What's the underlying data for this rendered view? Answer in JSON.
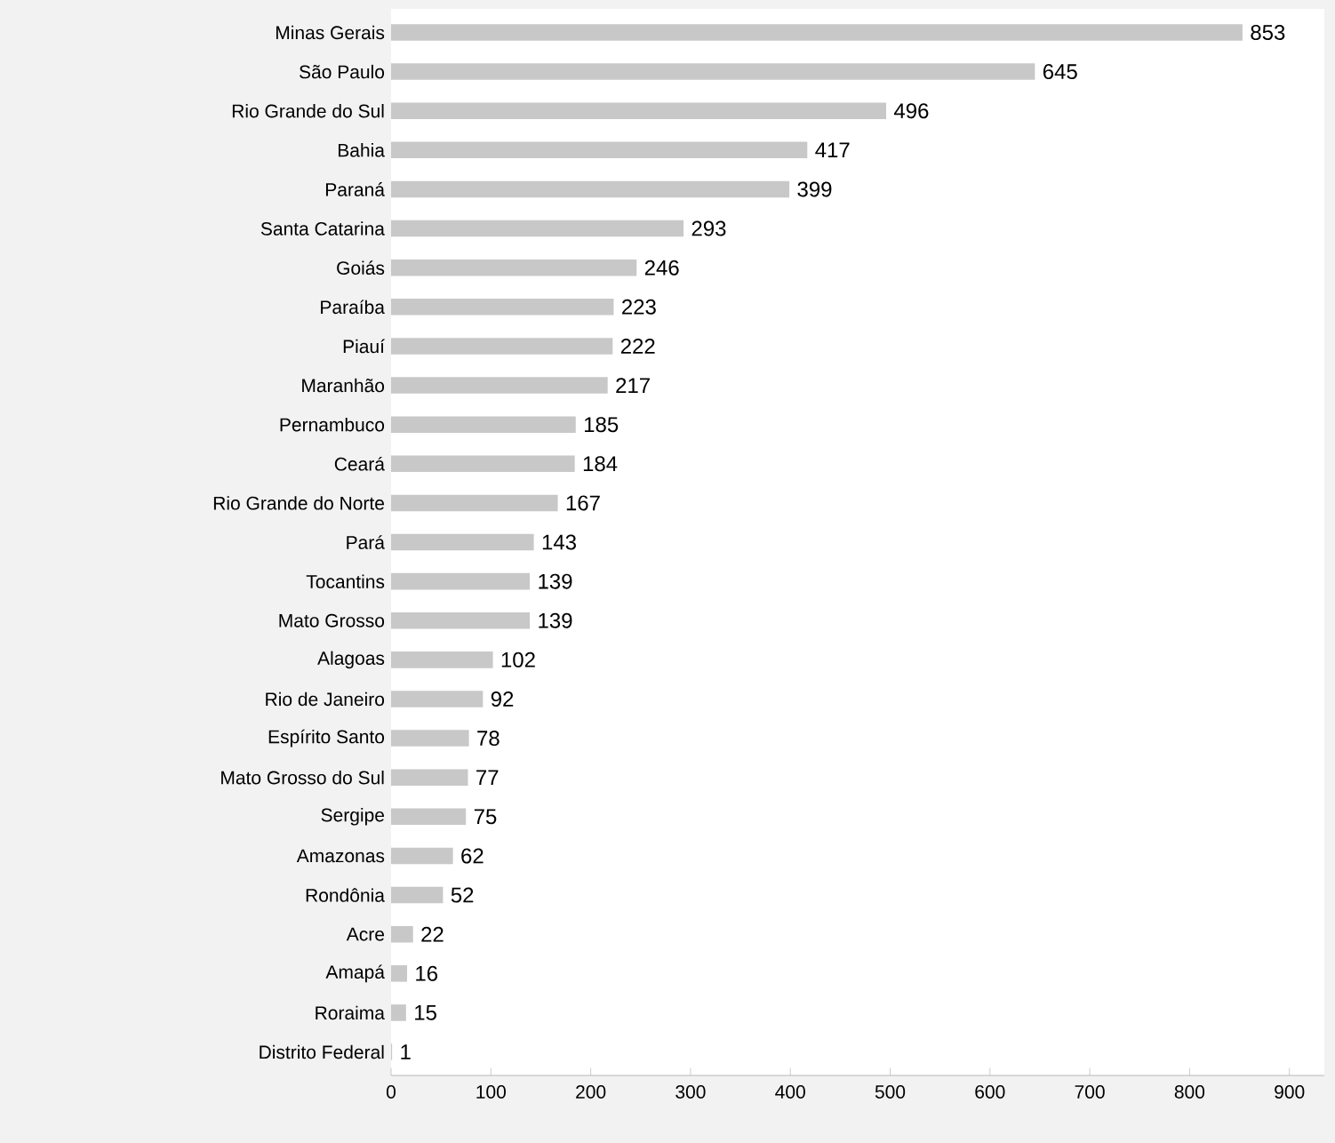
{
  "chart_data": {
    "type": "bar",
    "orientation": "horizontal",
    "categories": [
      "Minas Gerais",
      "São Paulo",
      "Rio Grande do Sul",
      "Bahia",
      "Paraná",
      "Santa Catarina",
      "Goiás",
      "Paraíba",
      "Piauí",
      "Maranhão",
      "Pernambuco",
      "Ceará",
      "Rio Grande do Norte",
      "Pará",
      "Tocantins",
      "Mato Grosso",
      "Alagoas",
      "Rio de Janeiro",
      "Espírito Santo",
      "Mato Grosso do Sul",
      "Sergipe",
      "Amazonas",
      "Rondônia",
      "Acre",
      "Amapá",
      "Roraima",
      "Distrito Federal"
    ],
    "values": [
      853,
      645,
      496,
      417,
      399,
      293,
      246,
      223,
      222,
      217,
      185,
      184,
      167,
      143,
      139,
      139,
      102,
      92,
      78,
      77,
      75,
      62,
      52,
      22,
      16,
      15,
      1
    ],
    "color": "#c8c8c8",
    "data_labels": true,
    "xlim": [
      0,
      935
    ],
    "xticks": [
      0,
      100,
      200,
      300,
      400,
      500,
      600,
      700,
      800,
      900
    ]
  }
}
